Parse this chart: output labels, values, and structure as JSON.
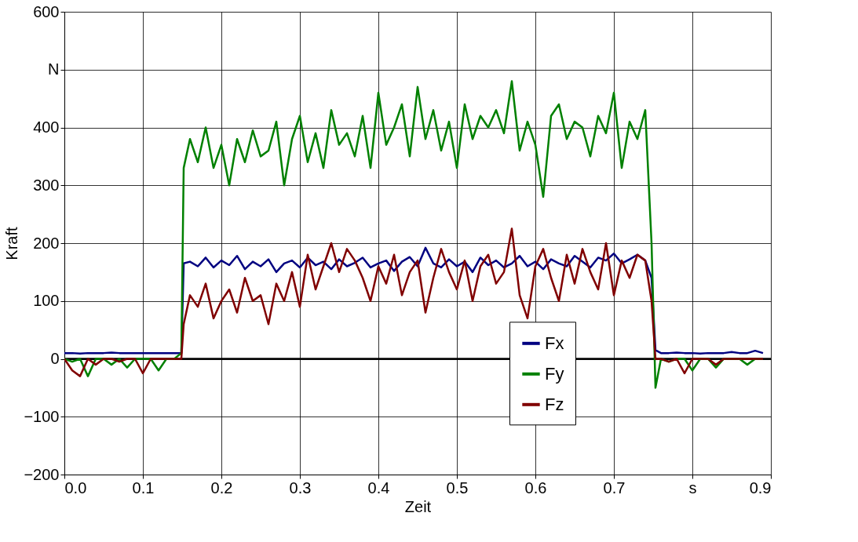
{
  "chart_data": {
    "type": "line",
    "xlabel": "Zeit",
    "ylabel": "Kraft",
    "xlim": [
      0,
      0.9
    ],
    "ylim": [
      -200,
      600
    ],
    "xticks": [
      {
        "value": 0,
        "label": "0.0"
      },
      0.1,
      0.2,
      0.3,
      0.4,
      0.5,
      0.6,
      0.7,
      {
        "value": 0.8,
        "label": "s"
      },
      0.9
    ],
    "yticks": [
      -200,
      -100,
      0,
      100,
      200,
      300,
      400,
      {
        "value": 500,
        "label": "N"
      },
      600
    ],
    "grid": true,
    "legend": "bottom right",
    "line_style": "solid",
    "ref_lines": [
      {
        "axis": "y",
        "value": 0,
        "label": null,
        "color": "#000000"
      }
    ],
    "x": [
      0,
      0.01,
      0.02,
      0.03,
      0.04,
      0.05,
      0.06,
      0.07,
      0.08,
      0.09,
      0.1,
      0.11,
      0.12,
      0.13,
      0.14,
      0.149,
      0.152,
      0.16,
      0.17,
      0.18,
      0.19,
      0.2,
      0.21,
      0.22,
      0.23,
      0.24,
      0.25,
      0.26,
      0.27,
      0.28,
      0.29,
      0.3,
      0.31,
      0.32,
      0.33,
      0.34,
      0.35,
      0.36,
      0.37,
      0.38,
      0.39,
      0.4,
      0.41,
      0.42,
      0.43,
      0.44,
      0.45,
      0.46,
      0.47,
      0.48,
      0.49,
      0.5,
      0.51,
      0.52,
      0.53,
      0.54,
      0.55,
      0.56,
      0.57,
      0.58,
      0.59,
      0.6,
      0.61,
      0.62,
      0.63,
      0.64,
      0.65,
      0.66,
      0.67,
      0.68,
      0.69,
      0.7,
      0.71,
      0.72,
      0.73,
      0.74,
      0.748,
      0.753,
      0.76,
      0.77,
      0.78,
      0.79,
      0.8,
      0.81,
      0.82,
      0.83,
      0.84,
      0.85,
      0.86,
      0.87,
      0.88,
      0.89
    ],
    "series": [
      {
        "name": "Fx",
        "color": "#000080",
        "values": [
          10,
          10,
          9,
          10,
          10,
          10,
          11,
          10,
          10,
          10,
          10,
          10,
          10,
          10,
          10,
          10,
          165,
          168,
          160,
          175,
          158,
          170,
          162,
          178,
          155,
          168,
          160,
          172,
          150,
          165,
          170,
          158,
          175,
          162,
          168,
          155,
          172,
          160,
          166,
          175,
          158,
          165,
          170,
          152,
          168,
          176,
          160,
          192,
          165,
          158,
          172,
          160,
          168,
          150,
          175,
          162,
          170,
          158,
          165,
          178,
          160,
          168,
          155,
          172,
          165,
          160,
          178,
          168,
          158,
          175,
          170,
          182,
          165,
          172,
          180,
          170,
          140,
          15,
          10,
          10,
          11,
          10,
          10,
          9,
          10,
          10,
          10,
          12,
          10,
          10,
          14,
          10
        ]
      },
      {
        "name": "Fy",
        "color": "#008000",
        "values": [
          0,
          -5,
          0,
          -30,
          0,
          0,
          -10,
          0,
          -15,
          0,
          0,
          0,
          -20,
          0,
          0,
          10,
          330,
          380,
          340,
          400,
          330,
          370,
          300,
          380,
          340,
          395,
          350,
          360,
          410,
          300,
          380,
          420,
          340,
          390,
          330,
          430,
          370,
          390,
          350,
          420,
          330,
          460,
          370,
          400,
          440,
          350,
          470,
          380,
          430,
          360,
          410,
          330,
          440,
          380,
          420,
          400,
          430,
          390,
          480,
          360,
          410,
          370,
          280,
          420,
          440,
          380,
          410,
          400,
          350,
          420,
          390,
          460,
          330,
          410,
          380,
          430,
          200,
          -50,
          0,
          -5,
          0,
          0,
          -20,
          0,
          0,
          -15,
          0,
          0,
          0,
          -10,
          0,
          0
        ]
      },
      {
        "name": "Fz",
        "color": "#800000",
        "values": [
          0,
          -20,
          -30,
          0,
          -10,
          0,
          0,
          -5,
          0,
          0,
          -25,
          0,
          0,
          0,
          0,
          0,
          60,
          110,
          90,
          130,
          70,
          100,
          120,
          80,
          140,
          100,
          110,
          60,
          130,
          100,
          150,
          90,
          180,
          120,
          160,
          200,
          150,
          190,
          170,
          140,
          100,
          160,
          130,
          180,
          110,
          150,
          170,
          80,
          140,
          190,
          150,
          120,
          170,
          100,
          160,
          180,
          130,
          150,
          225,
          110,
          70,
          160,
          190,
          140,
          100,
          180,
          130,
          190,
          150,
          120,
          200,
          110,
          170,
          140,
          180,
          170,
          100,
          0,
          0,
          -5,
          0,
          -25,
          0,
          0,
          0,
          -10,
          0,
          0,
          0,
          0,
          0,
          0
        ]
      }
    ]
  }
}
